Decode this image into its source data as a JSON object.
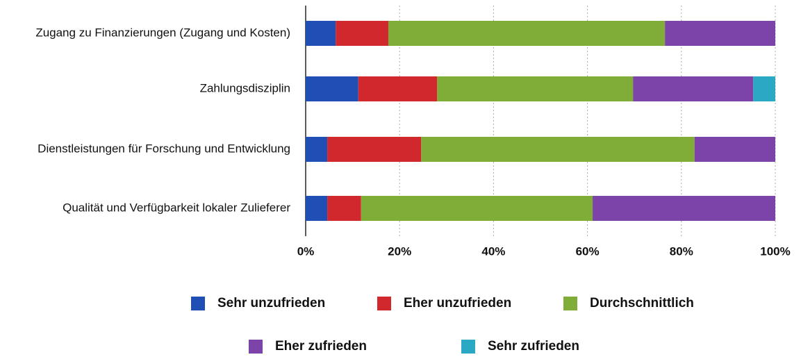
{
  "chart_data": {
    "type": "stacked-barh",
    "categories": [
      "Zugang zu Finanzierungen (Zugang und Kosten)",
      "Zahlungsdisziplin",
      "Dienstleistungen für Forschung und Entwicklung",
      "Qualität und Verfügbarkeit lokaler Zulieferer"
    ],
    "series": [
      {
        "name": "Sehr unzufrieden",
        "color": "#1f4fb4",
        "values": [
          6.4,
          11.2,
          4.6,
          4.6
        ]
      },
      {
        "name": "Eher unzufrieden",
        "color": "#d0282c",
        "values": [
          11.2,
          16.8,
          20.0,
          7.2
        ]
      },
      {
        "name": "Durchschnittlich",
        "color": "#7fad37",
        "values": [
          58.9,
          41.7,
          58.2,
          49.3
        ]
      },
      {
        "name": "Eher zufrieden",
        "color": "#7c44a8",
        "values": [
          23.5,
          25.6,
          17.2,
          38.9
        ]
      },
      {
        "name": "Sehr zufrieden",
        "color": "#2aa8c4",
        "values": [
          0,
          4.7,
          0,
          0
        ]
      }
    ],
    "xlim": [
      0,
      100
    ],
    "xticks": [
      {
        "value": 0,
        "label": "0%"
      },
      {
        "value": 20,
        "label": "20%"
      },
      {
        "value": 40,
        "label": "40%"
      },
      {
        "value": 60,
        "label": "60%"
      },
      {
        "value": 80,
        "label": "80%"
      },
      {
        "value": 100,
        "label": "100%"
      }
    ],
    "grid": true
  }
}
